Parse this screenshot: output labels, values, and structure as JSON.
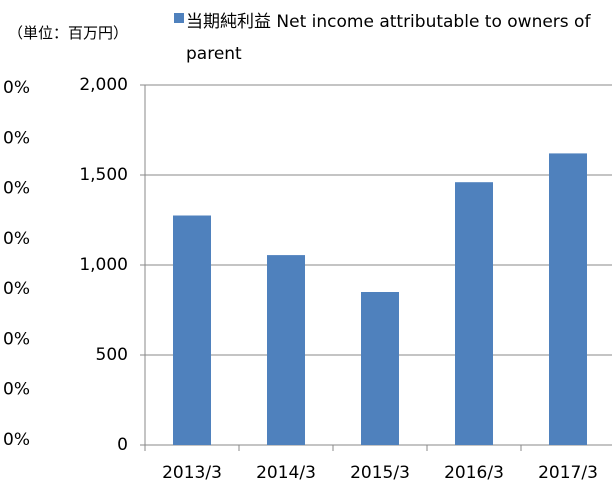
{
  "chart_data": {
    "type": "bar",
    "unit_label": "（単位：百万円）",
    "categories": [
      "2013/3",
      "2014/3",
      "2015/3",
      "2016/3",
      "2017/3"
    ],
    "series": [
      {
        "name": "当期純利益 Net income attributable to owners of parent",
        "color": "#4f81bd",
        "values": [
          1275,
          1055,
          850,
          1460,
          1620
        ]
      }
    ],
    "ylim": [
      0,
      2000
    ],
    "yticks": [
      0,
      500,
      {
        "value": 1000,
        "label": "1,000"
      },
      {
        "value": 1500,
        "label": "1,500"
      },
      {
        "value": 2000,
        "label": "2,000"
      }
    ],
    "grid": true,
    "cropped_axis_labels": [
      "0%",
      "0%",
      "0%",
      "0%",
      "0%",
      "0%",
      "0%",
      "0%"
    ]
  }
}
